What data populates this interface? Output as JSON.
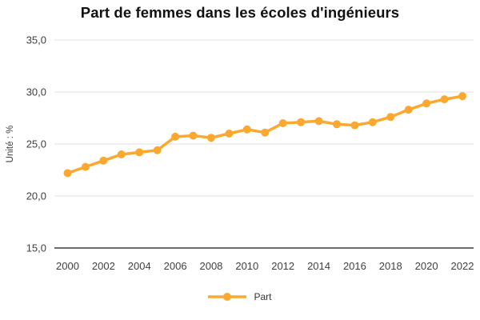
{
  "title": "Part de femmes dans les écoles d'ingénieurs",
  "legend": {
    "label": "Part"
  },
  "colors": {
    "series": "#FAA82F",
    "grid": "#E2E2E2",
    "axis": "#3C3C3C",
    "tick_text": "#404040",
    "background": "#FFFFFF"
  },
  "chart_data": {
    "type": "line",
    "title": "Part de femmes dans les écoles d'ingénieurs",
    "xlabel": "",
    "ylabel": "Unité : %",
    "x": [
      2000,
      2001,
      2002,
      2003,
      2004,
      2005,
      2006,
      2007,
      2008,
      2009,
      2010,
      2011,
      2012,
      2013,
      2014,
      2015,
      2016,
      2017,
      2018,
      2019,
      2020,
      2021,
      2022
    ],
    "series": [
      {
        "name": "Part",
        "values": [
          22.2,
          22.8,
          23.4,
          24.0,
          24.2,
          24.4,
          25.7,
          25.8,
          25.6,
          26.0,
          26.4,
          26.1,
          27.0,
          27.1,
          27.2,
          26.9,
          26.8,
          27.1,
          27.6,
          28.3,
          28.9,
          29.3,
          29.6
        ]
      }
    ],
    "ylim": [
      15,
      35
    ],
    "y_ticks": [
      15,
      20,
      25,
      30,
      35
    ],
    "y_tick_labels": [
      "15,0",
      "20,0",
      "25,0",
      "30,0",
      "35,0"
    ],
    "x_tick_years": [
      2000,
      2002,
      2004,
      2006,
      2008,
      2010,
      2012,
      2014,
      2016,
      2018,
      2020,
      2022
    ],
    "x_tick_labels": [
      "2000",
      "2002",
      "2004",
      "2006",
      "2008",
      "2010",
      "2012",
      "2014",
      "2016",
      "2018",
      "2020",
      "2022"
    ],
    "grid": "horizontal",
    "legend_position": "bottom",
    "marker": "circle"
  }
}
